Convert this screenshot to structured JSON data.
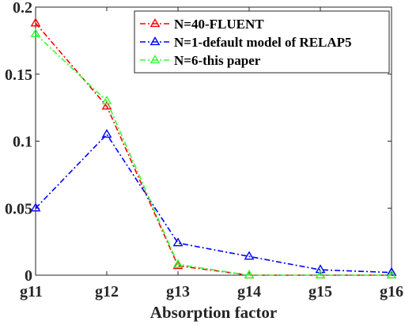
{
  "chart_data": {
    "type": "line",
    "categories": [
      "g11",
      "g12",
      "g13",
      "g14",
      "g15",
      "g16"
    ],
    "xlabel": "Absorption factor",
    "ylabel": "",
    "ylim": [
      0,
      0.2
    ],
    "yticks": [
      0,
      0.05,
      0.1,
      0.15,
      0.2
    ],
    "ytick_labels": [
      "0",
      "0.05",
      "0.1",
      "0.15",
      "0.2"
    ],
    "grid": false,
    "legend_position": "top-right",
    "marker": "triangle",
    "series": [
      {
        "name": "N=40-FLUENT",
        "color": "#ff0000",
        "dash": "dash-dot",
        "values": [
          0.188,
          0.126,
          0.007,
          0.0,
          0.0,
          0.0
        ]
      },
      {
        "name": "N=1-default model of RELAP5",
        "color": "#0000ff",
        "dash": "dash-dot",
        "values": [
          0.05,
          0.105,
          0.024,
          0.014,
          0.004,
          0.002
        ]
      },
      {
        "name": "N=6-this paper",
        "color": "#33ff33",
        "dash": "dash-dot",
        "values": [
          0.18,
          0.13,
          0.008,
          0.0,
          0.0,
          0.0
        ]
      }
    ]
  }
}
